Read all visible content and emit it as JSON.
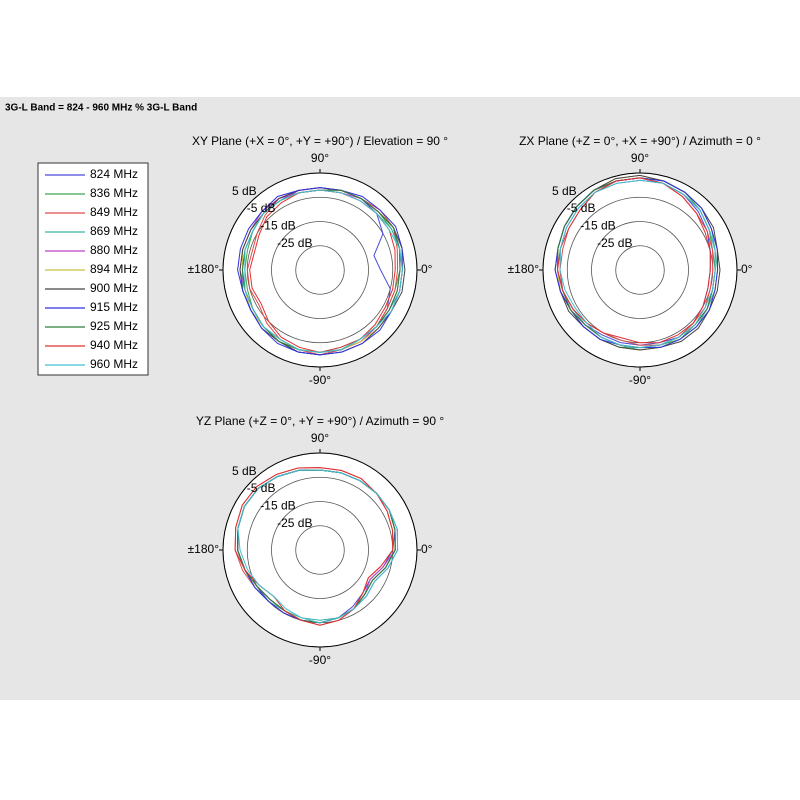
{
  "header": {
    "title": "3G-L Band = 824 - 960 MHz % 3G-L Band"
  },
  "chart_data": [
    {
      "type": "polar",
      "title": "XY Plane (+X = 0°, +Y = +90°) / Elevation = 90 °",
      "theta": [
        0,
        15,
        30,
        45,
        60,
        75,
        90,
        105,
        120,
        135,
        150,
        165,
        180,
        195,
        210,
        225,
        240,
        255,
        270,
        285,
        300,
        315,
        330,
        345
      ],
      "rlim": [
        -35,
        5
      ],
      "rticks": [
        {
          "value": 5,
          "label": "5 dB"
        },
        {
          "value": -5,
          "label": "-5 dB"
        },
        {
          "value": -15,
          "label": "-15 dB"
        },
        {
          "value": -25,
          "label": "-25 dB"
        }
      ],
      "thetaticks": [
        {
          "value": 90,
          "label": "90°"
        },
        {
          "value": 0,
          "label": "0°"
        },
        {
          "value": 180,
          "label": "±180°"
        },
        {
          "value": -90,
          "label": "-90°"
        }
      ],
      "series": [
        {
          "name": "824 MHz",
          "color": "#4a4ad8",
          "values": [
            -10,
            -12,
            -5,
            -2,
            -1,
            -1,
            -1,
            -1,
            -2,
            -2,
            -3,
            -3,
            -3,
            -3,
            -3,
            -2,
            -1,
            0,
            0,
            -1,
            -2,
            -2,
            -3,
            -5
          ]
        },
        {
          "name": "836 MHz",
          "color": "#3fa34d",
          "values": [
            -2,
            -1,
            -1,
            -1,
            -1,
            -1,
            -2,
            -2,
            -2,
            -2,
            -3,
            -4,
            -4,
            -4,
            -3,
            -2,
            -1,
            -1,
            -1,
            -1,
            -2,
            -2,
            -3,
            -3
          ]
        },
        {
          "name": "849 MHz",
          "color": "#e04a4a",
          "values": [
            -3,
            -2,
            0,
            0,
            -1,
            -1,
            -1,
            -1,
            -1,
            -3,
            -5,
            -6,
            -5,
            -5,
            -6,
            -4,
            -2,
            -1,
            0,
            -1,
            -1,
            -2,
            -3,
            -3
          ]
        },
        {
          "name": "869 MHz",
          "color": "#3fb0a8",
          "values": [
            -1,
            -1,
            -1,
            -2,
            -2,
            -2,
            -2,
            -2,
            -2,
            -2,
            -3,
            -3,
            -3,
            -2,
            -2,
            -2,
            -2,
            -1,
            -1,
            -2,
            -2,
            -2,
            -2,
            -1
          ]
        },
        {
          "name": "880 MHz",
          "color": "#c040c8",
          "values": [
            -2,
            -1,
            0,
            -1,
            -1,
            -2,
            -2,
            -2,
            -1,
            -1,
            -2,
            -2,
            -2,
            -3,
            -3,
            -2,
            -1,
            -1,
            -1,
            -1,
            -1,
            -2,
            -2,
            -2
          ]
        },
        {
          "name": "894 MHz",
          "color": "#c8c040",
          "values": [
            -1,
            0,
            0,
            -1,
            -1,
            -1,
            -2,
            -2,
            -2,
            -2,
            -2,
            -2,
            -3,
            -3,
            -2,
            -2,
            -1,
            -1,
            -1,
            -1,
            -1,
            -1,
            -1,
            -1
          ]
        },
        {
          "name": "900 MHz",
          "color": "#444444",
          "values": [
            0,
            0,
            0,
            -1,
            -1,
            -1,
            -1,
            -1,
            -1,
            -2,
            -2,
            -2,
            -2,
            -2,
            -2,
            -1,
            -1,
            0,
            0,
            0,
            0,
            -1,
            -1,
            0
          ]
        },
        {
          "name": "915 MHz",
          "color": "#3030e0",
          "values": [
            -1,
            0,
            1,
            0,
            0,
            -1,
            -1,
            -1,
            0,
            -1,
            -1,
            -1,
            -1,
            -2,
            -2,
            -1,
            0,
            0,
            0,
            0,
            0,
            0,
            -1,
            -1
          ]
        },
        {
          "name": "925 MHz",
          "color": "#2f7f3a",
          "values": [
            -2,
            -1,
            0,
            -1,
            -1,
            -1,
            -2,
            -2,
            -2,
            -2,
            -3,
            -3,
            -3,
            -3,
            -3,
            -2,
            -1,
            -1,
            -1,
            -1,
            -2,
            -2,
            -2,
            -2
          ]
        },
        {
          "name": "940 MHz",
          "color": "#e03030",
          "values": [
            -4,
            -3,
            -2,
            -2,
            -2,
            -2,
            -2,
            -2,
            -3,
            -4,
            -6,
            -7,
            -6,
            -6,
            -7,
            -5,
            -3,
            -2,
            -1,
            -2,
            -2,
            -3,
            -4,
            -4
          ]
        },
        {
          "name": "960 MHz",
          "color": "#40c0d0",
          "values": [
            -1,
            -1,
            -2,
            -2,
            -2,
            -2,
            -2,
            -2,
            -2,
            -2,
            -3,
            -3,
            -4,
            -3,
            -3,
            -2,
            -2,
            -1,
            -1,
            -1,
            -2,
            -2,
            -1,
            -1
          ]
        }
      ]
    },
    {
      "type": "polar",
      "title": "ZX Plane (+Z = 0°, +X = +90°) / Azimuth = 0 °",
      "theta": [
        0,
        15,
        30,
        45,
        60,
        75,
        90,
        105,
        120,
        135,
        150,
        165,
        180,
        195,
        210,
        225,
        240,
        255,
        270,
        285,
        300,
        315,
        330,
        345
      ],
      "rlim": [
        -35,
        5
      ],
      "rticks": [
        {
          "value": 5,
          "label": "5 dB"
        },
        {
          "value": -5,
          "label": "-5 dB"
        },
        {
          "value": -15,
          "label": "-15 dB"
        },
        {
          "value": -25,
          "label": "-25 dB"
        }
      ],
      "thetaticks": [
        {
          "value": 90,
          "label": "90°"
        },
        {
          "value": 0,
          "label": "0°"
        },
        {
          "value": 180,
          "label": "±180°"
        },
        {
          "value": -90,
          "label": "-90°"
        }
      ],
      "series": [
        {
          "color": "#4a4ad8",
          "values": [
            -6,
            -5,
            -3,
            -1,
            1,
            2,
            2,
            2,
            2,
            1,
            0,
            -1,
            -2,
            -2,
            -3,
            -3,
            -4,
            -4,
            -4,
            -4,
            -3,
            -4,
            -5,
            -6
          ]
        },
        {
          "color": "#3fa34d",
          "values": [
            -4,
            -4,
            -2,
            0,
            2,
            3,
            3,
            3,
            3,
            2,
            1,
            0,
            -1,
            -1,
            -2,
            -2,
            -2,
            -2,
            -3,
            -3,
            -2,
            -3,
            -3,
            -4
          ]
        },
        {
          "color": "#e04a4a",
          "values": [
            -5,
            -4,
            -3,
            -2,
            0,
            2,
            3,
            3,
            2,
            0,
            -1,
            -2,
            -2,
            -2,
            -3,
            -4,
            -5,
            -5,
            -4,
            -3,
            -3,
            -4,
            -4,
            -5
          ]
        },
        {
          "color": "#3fb0a8",
          "values": [
            -3,
            -3,
            -1,
            1,
            2,
            3,
            3,
            3,
            3,
            2,
            1,
            0,
            -1,
            -2,
            -3,
            -3,
            -3,
            -3,
            -2,
            -2,
            -2,
            -2,
            -3,
            -3
          ]
        },
        {
          "color": "#c040c8",
          "values": [
            -4,
            -3,
            -2,
            0,
            1,
            2,
            3,
            3,
            3,
            2,
            1,
            0,
            -1,
            -2,
            -2,
            -3,
            -3,
            -3,
            -3,
            -3,
            -3,
            -3,
            -3,
            -4
          ]
        },
        {
          "color": "#c8c040",
          "values": [
            -3,
            -2,
            -1,
            1,
            2,
            3,
            4,
            4,
            3,
            2,
            1,
            0,
            -1,
            -1,
            -2,
            -2,
            -2,
            -2,
            -2,
            -2,
            -2,
            -2,
            -2,
            -3
          ]
        },
        {
          "color": "#444444",
          "values": [
            -2,
            -2,
            0,
            1,
            2,
            3,
            4,
            4,
            3,
            2,
            1,
            0,
            0,
            -1,
            -1,
            -2,
            -2,
            -2,
            -2,
            -2,
            -1,
            -1,
            -2,
            -2
          ]
        },
        {
          "color": "#3030e0",
          "values": [
            -3,
            -2,
            -1,
            1,
            2,
            3,
            3,
            3,
            3,
            2,
            1,
            0,
            0,
            -1,
            -2,
            -2,
            -2,
            -3,
            -3,
            -2,
            -2,
            -2,
            -2,
            -3
          ]
        },
        {
          "color": "#2f7f3a",
          "values": [
            -4,
            -3,
            -2,
            0,
            1,
            2,
            3,
            3,
            3,
            2,
            1,
            0,
            -1,
            -2,
            -2,
            -3,
            -3,
            -3,
            -3,
            -3,
            -3,
            -3,
            -3,
            -4
          ]
        },
        {
          "color": "#e03030",
          "values": [
            -6,
            -5,
            -4,
            -2,
            0,
            2,
            3,
            3,
            2,
            0,
            -1,
            -1,
            -1,
            -2,
            -3,
            -4,
            -5,
            -6,
            -5,
            -4,
            -4,
            -4,
            -5,
            -6
          ]
        },
        {
          "color": "#40c0d0",
          "values": [
            -4,
            -3,
            -2,
            0,
            1,
            2,
            2,
            2,
            2,
            1,
            0,
            -1,
            -2,
            -3,
            -4,
            -4,
            -3,
            -3,
            -3,
            -3,
            -3,
            -3,
            -4,
            -4
          ]
        }
      ]
    },
    {
      "type": "polar",
      "title": "YZ Plane (+Z = 0°, +Y = +90°) / Azimuth = 90 °",
      "theta": [
        0,
        15,
        30,
        45,
        60,
        75,
        90,
        105,
        120,
        135,
        150,
        165,
        180,
        195,
        210,
        225,
        240,
        255,
        270,
        285,
        300,
        315,
        330,
        345
      ],
      "rlim": [
        -35,
        5
      ],
      "rticks": [
        {
          "value": 5,
          "label": "5 dB"
        },
        {
          "value": -5,
          "label": "-5 dB"
        },
        {
          "value": -15,
          "label": "-15 dB"
        },
        {
          "value": -25,
          "label": "-25 dB"
        }
      ],
      "thetaticks": [
        {
          "value": 90,
          "label": "90°"
        },
        {
          "value": 0,
          "label": "0°"
        },
        {
          "value": 180,
          "label": "±180°"
        },
        {
          "value": -90,
          "label": "-90°"
        }
      ],
      "series": [
        {
          "color": "#4a4ad8",
          "values": [
            -5,
            -3,
            -2,
            -2,
            -2,
            -2,
            -2,
            -1,
            0,
            1,
            1,
            0,
            -1,
            -3,
            -5,
            -5,
            -5,
            -5,
            -5,
            -6,
            -8,
            -10,
            -11,
            -8
          ]
        },
        {
          "color": "#3fa34d",
          "values": [
            -4,
            -3,
            -2,
            -2,
            -2,
            -2,
            -2,
            -1,
            0,
            1,
            1,
            0,
            -1,
            -3,
            -4,
            -5,
            -5,
            -5,
            -5,
            -6,
            -7,
            -9,
            -10,
            -7
          ]
        },
        {
          "color": "#e04a4a",
          "values": [
            -5,
            -4,
            -3,
            -2,
            -1,
            -1,
            -1,
            0,
            1,
            2,
            2,
            1,
            0,
            -2,
            -4,
            -5,
            -5,
            -5,
            -4,
            -5,
            -7,
            -10,
            -12,
            -9
          ]
        },
        {
          "color": "#3fb0a8",
          "values": [
            -4,
            -3,
            -2,
            -2,
            -2,
            -2,
            -2,
            -1,
            0,
            1,
            1,
            0,
            -1,
            -3,
            -4,
            -5,
            -6,
            -6,
            -6,
            -6,
            -7,
            -9,
            -10,
            -7
          ]
        },
        {
          "color": "#c040c8",
          "values": [
            -4,
            -3,
            -2,
            -2,
            -2,
            -2,
            -2,
            -1,
            0,
            1,
            1,
            0,
            -1,
            -3,
            -5,
            -6,
            -6,
            -5,
            -5,
            -6,
            -7,
            -9,
            -11,
            -8
          ]
        },
        {
          "color": "#c8c040",
          "values": [
            -4,
            -3,
            -2,
            -2,
            -2,
            -2,
            -2,
            -1,
            0,
            1,
            1,
            0,
            -1,
            -3,
            -5,
            -6,
            -6,
            -5,
            -5,
            -6,
            -7,
            -9,
            -10,
            -7
          ]
        },
        {
          "color": "#444444",
          "values": [
            -4,
            -3,
            -2,
            -2,
            -2,
            -2,
            -2,
            -1,
            0,
            1,
            1,
            0,
            -1,
            -3,
            -5,
            -6,
            -6,
            -5,
            -5,
            -6,
            -7,
            -9,
            -10,
            -7
          ]
        },
        {
          "color": "#3030e0",
          "values": [
            -3,
            -2,
            -2,
            -2,
            -2,
            -2,
            -2,
            -1,
            0,
            1,
            1,
            0,
            -1,
            -3,
            -4,
            -5,
            -5,
            -5,
            -5,
            -6,
            -7,
            -8,
            -9,
            -6
          ]
        },
        {
          "color": "#2f7f3a",
          "values": [
            -4,
            -3,
            -2,
            -2,
            -2,
            -2,
            -2,
            -1,
            0,
            1,
            1,
            0,
            -1,
            -3,
            -5,
            -6,
            -6,
            -5,
            -5,
            -6,
            -7,
            -9,
            -10,
            -7
          ]
        },
        {
          "color": "#e03030",
          "values": [
            -5,
            -4,
            -3,
            -2,
            -1,
            -1,
            -1,
            0,
            1,
            2,
            2,
            1,
            0,
            -3,
            -6,
            -8,
            -6,
            -5,
            -4,
            -5,
            -7,
            -10,
            -12,
            -9
          ]
        },
        {
          "color": "#40c0d0",
          "values": [
            -3,
            -2,
            -2,
            -2,
            -2,
            -2,
            -2,
            -1,
            0,
            1,
            1,
            0,
            -2,
            -4,
            -6,
            -8,
            -7,
            -6,
            -5,
            -6,
            -7,
            -8,
            -9,
            -6
          ]
        }
      ]
    }
  ]
}
